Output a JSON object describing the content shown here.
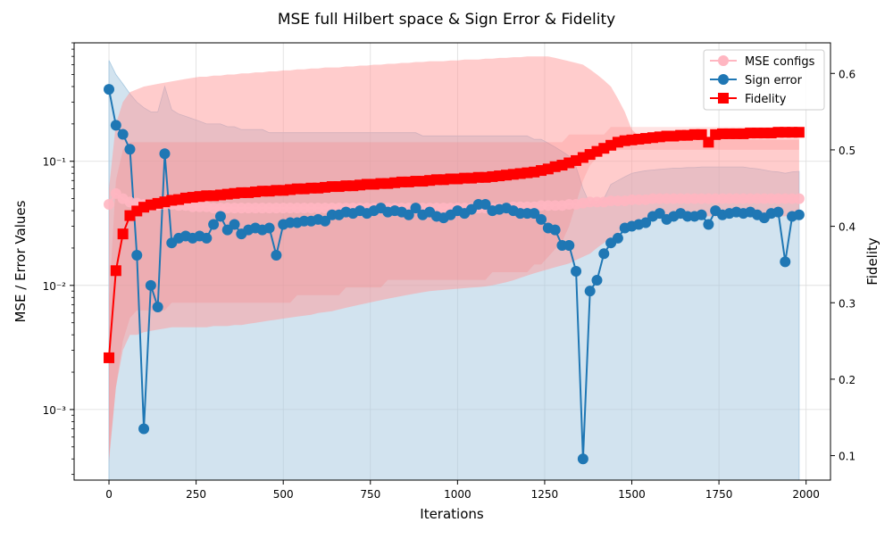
{
  "chart_data": {
    "type": "line",
    "title": "MSE full Hilbert space & Sign Error & Fidelity",
    "xlabel": "Iterations",
    "ylabel": "MSE / Error Values",
    "y2label": "Fidelity",
    "xlim": [
      -100,
      2070
    ],
    "ylim": [
      0.00027,
      0.9
    ],
    "yscale": "log",
    "y2lim": [
      0.068,
      0.64
    ],
    "grid": true,
    "legend_position": "top-right",
    "xticks": [
      "0",
      "250",
      "500",
      "750",
      "1000",
      "1250",
      "1500",
      "1750",
      "2000"
    ],
    "yticks": [
      "10⁻³",
      "10⁻²",
      "10⁻¹"
    ],
    "y2ticks": [
      "0.1",
      "0.2",
      "0.3",
      "0.4",
      "0.5",
      "0.6"
    ],
    "colors": {
      "mse": "#ffb6c1",
      "mse_band": "#ff9999",
      "sign": "#1f77b4",
      "sign_band": "#a6c8e0",
      "fidelity": "#ff0000"
    },
    "x": [
      0,
      20,
      40,
      60,
      80,
      100,
      120,
      140,
      160,
      180,
      200,
      220,
      240,
      260,
      280,
      300,
      320,
      340,
      360,
      380,
      400,
      420,
      440,
      460,
      480,
      500,
      520,
      540,
      560,
      580,
      600,
      620,
      640,
      660,
      680,
      700,
      720,
      740,
      760,
      780,
      800,
      820,
      840,
      860,
      880,
      900,
      920,
      940,
      960,
      980,
      1000,
      1020,
      1040,
      1060,
      1080,
      1100,
      1120,
      1140,
      1160,
      1180,
      1200,
      1220,
      1240,
      1260,
      1280,
      1300,
      1320,
      1340,
      1360,
      1380,
      1400,
      1420,
      1440,
      1460,
      1480,
      1500,
      1520,
      1540,
      1560,
      1580,
      1600,
      1620,
      1640,
      1660,
      1680,
      1700,
      1720,
      1740,
      1760,
      1780,
      1800,
      1820,
      1840,
      1860,
      1880,
      1900,
      1920,
      1940,
      1960,
      1980
    ],
    "series": [
      {
        "name": "MSE configs",
        "axis": "left",
        "values": [
          0.045,
          0.055,
          0.05,
          0.047,
          0.046,
          0.045,
          0.044,
          0.044,
          0.045,
          0.045,
          0.044,
          0.044,
          0.043,
          0.043,
          0.043,
          0.042,
          0.042,
          0.042,
          0.042,
          0.042,
          0.042,
          0.042,
          0.042,
          0.042,
          0.042,
          0.042,
          0.042,
          0.042,
          0.042,
          0.042,
          0.042,
          0.042,
          0.042,
          0.042,
          0.042,
          0.042,
          0.042,
          0.042,
          0.042,
          0.042,
          0.042,
          0.042,
          0.042,
          0.042,
          0.042,
          0.042,
          0.042,
          0.042,
          0.042,
          0.042,
          0.042,
          0.042,
          0.042,
          0.042,
          0.042,
          0.042,
          0.042,
          0.042,
          0.043,
          0.043,
          0.043,
          0.043,
          0.044,
          0.044,
          0.044,
          0.044,
          0.045,
          0.045,
          0.046,
          0.047,
          0.047,
          0.047,
          0.048,
          0.048,
          0.048,
          0.049,
          0.049,
          0.049,
          0.05,
          0.05,
          0.05,
          0.05,
          0.05,
          0.05,
          0.05,
          0.05,
          0.05,
          0.05,
          0.05,
          0.05,
          0.05,
          0.05,
          0.05,
          0.05,
          0.05,
          0.05,
          0.05,
          0.05,
          0.05,
          0.05
        ],
        "band_low": [
          0.0004,
          0.0015,
          0.003,
          0.004,
          0.004,
          0.0042,
          0.0043,
          0.0044,
          0.0045,
          0.0046,
          0.0046,
          0.0046,
          0.0046,
          0.0046,
          0.0046,
          0.0047,
          0.0047,
          0.0047,
          0.0048,
          0.0048,
          0.0049,
          0.005,
          0.0051,
          0.0052,
          0.0053,
          0.0054,
          0.0055,
          0.0056,
          0.0057,
          0.0058,
          0.006,
          0.0061,
          0.0062,
          0.0064,
          0.0066,
          0.0068,
          0.007,
          0.0072,
          0.0074,
          0.0076,
          0.0078,
          0.008,
          0.0082,
          0.0084,
          0.0086,
          0.0088,
          0.009,
          0.0091,
          0.0092,
          0.0093,
          0.0094,
          0.0095,
          0.0096,
          0.0097,
          0.0098,
          0.01,
          0.0103,
          0.0106,
          0.011,
          0.0115,
          0.012,
          0.0125,
          0.013,
          0.0135,
          0.014,
          0.0145,
          0.015,
          0.016,
          0.017,
          0.018,
          0.02,
          0.022,
          0.024,
          0.026,
          0.03,
          0.032,
          0.034,
          0.035,
          0.036,
          0.036,
          0.036,
          0.036,
          0.036,
          0.036,
          0.036,
          0.036,
          0.036,
          0.036,
          0.036,
          0.036,
          0.036,
          0.036,
          0.036,
          0.036,
          0.036,
          0.036,
          0.036,
          0.036,
          0.036,
          0.036
        ],
        "band_high": [
          0.06,
          0.2,
          0.3,
          0.36,
          0.38,
          0.4,
          0.41,
          0.42,
          0.43,
          0.44,
          0.45,
          0.46,
          0.47,
          0.48,
          0.48,
          0.49,
          0.49,
          0.5,
          0.5,
          0.51,
          0.51,
          0.52,
          0.52,
          0.53,
          0.53,
          0.54,
          0.54,
          0.55,
          0.55,
          0.56,
          0.56,
          0.57,
          0.57,
          0.57,
          0.58,
          0.58,
          0.59,
          0.59,
          0.6,
          0.6,
          0.61,
          0.61,
          0.62,
          0.62,
          0.63,
          0.63,
          0.64,
          0.64,
          0.64,
          0.65,
          0.65,
          0.66,
          0.66,
          0.66,
          0.67,
          0.67,
          0.68,
          0.68,
          0.69,
          0.69,
          0.7,
          0.7,
          0.7,
          0.7,
          0.68,
          0.66,
          0.64,
          0.62,
          0.6,
          0.55,
          0.5,
          0.45,
          0.4,
          0.32,
          0.25,
          0.18,
          0.16,
          0.15,
          0.15,
          0.15,
          0.15,
          0.15,
          0.15,
          0.15,
          0.15,
          0.15,
          0.15,
          0.15,
          0.15,
          0.15,
          0.15,
          0.15,
          0.15,
          0.15,
          0.15,
          0.15,
          0.15,
          0.15,
          0.15,
          0.15
        ]
      },
      {
        "name": "Sign error",
        "axis": "left",
        "values": [
          0.38,
          0.195,
          0.165,
          0.125,
          0.0175,
          0.0007,
          0.01,
          0.0067,
          0.115,
          0.022,
          0.024,
          0.025,
          0.024,
          0.025,
          0.024,
          0.031,
          0.036,
          0.028,
          0.031,
          0.026,
          0.028,
          0.029,
          0.028,
          0.029,
          0.0175,
          0.031,
          0.032,
          0.032,
          0.033,
          0.033,
          0.034,
          0.033,
          0.037,
          0.037,
          0.039,
          0.038,
          0.04,
          0.038,
          0.04,
          0.042,
          0.039,
          0.04,
          0.039,
          0.037,
          0.042,
          0.037,
          0.039,
          0.036,
          0.035,
          0.037,
          0.04,
          0.038,
          0.041,
          0.045,
          0.045,
          0.04,
          0.041,
          0.042,
          0.04,
          0.038,
          0.038,
          0.038,
          0.034,
          0.029,
          0.028,
          0.021,
          0.021,
          0.013,
          0.0004,
          0.009,
          0.011,
          0.018,
          0.022,
          0.024,
          0.029,
          0.03,
          0.031,
          0.032,
          0.036,
          0.038,
          0.034,
          0.036,
          0.038,
          0.036,
          0.036,
          0.037,
          0.031,
          0.04,
          0.037,
          0.038,
          0.039,
          0.038,
          0.039,
          0.037,
          0.035,
          0.038,
          0.039,
          0.0155,
          0.036,
          0.037
        ],
        "band_low": [
          0.0001,
          0.0001,
          0.0001,
          0.0001,
          0.0001,
          0.0001,
          0.0001,
          0.0001,
          0.0001,
          0.0001,
          0.0001,
          0.0001,
          0.0001,
          0.0001,
          0.0001,
          0.0001,
          0.0001,
          0.0001,
          0.0001,
          0.0001,
          0.0001,
          0.0001,
          0.0001,
          0.0001,
          0.0001,
          0.0001,
          0.0001,
          0.0001,
          0.0001,
          0.0001,
          0.0001,
          0.0001,
          0.0001,
          0.0001,
          0.0001,
          0.0001,
          0.0001,
          0.0001,
          0.0001,
          0.0001,
          0.0001,
          0.0001,
          0.0001,
          0.0001,
          0.0001,
          0.0001,
          0.0001,
          0.0001,
          0.0001,
          0.0001,
          0.0001,
          0.0001,
          0.0001,
          0.0001,
          0.0001,
          0.0001,
          0.0001,
          0.0001,
          0.0001,
          0.0001,
          0.0001,
          0.0001,
          0.0001,
          0.0001,
          0.0001,
          0.0001,
          0.0001,
          0.0001,
          0.0001,
          0.0001,
          0.0001,
          0.0001,
          0.0001,
          0.0001,
          0.0001,
          0.0001,
          0.0001,
          0.0001,
          0.0001,
          0.0001,
          0.0001,
          0.0001,
          0.0001,
          0.0001,
          0.0001,
          0.0001,
          0.0001,
          0.0001,
          0.0001,
          0.0001,
          0.0001,
          0.0001,
          0.0001,
          0.0001,
          0.0001,
          0.0001,
          0.0001,
          0.0001,
          0.0001,
          0.0001
        ],
        "band_high": [
          0.65,
          0.5,
          0.42,
          0.35,
          0.3,
          0.27,
          0.25,
          0.25,
          0.4,
          0.26,
          0.24,
          0.23,
          0.22,
          0.21,
          0.2,
          0.2,
          0.2,
          0.19,
          0.19,
          0.18,
          0.18,
          0.18,
          0.18,
          0.17,
          0.17,
          0.17,
          0.17,
          0.17,
          0.17,
          0.17,
          0.17,
          0.17,
          0.17,
          0.17,
          0.17,
          0.17,
          0.17,
          0.17,
          0.17,
          0.17,
          0.17,
          0.17,
          0.17,
          0.17,
          0.17,
          0.16,
          0.16,
          0.16,
          0.16,
          0.16,
          0.16,
          0.16,
          0.16,
          0.16,
          0.16,
          0.16,
          0.16,
          0.16,
          0.16,
          0.16,
          0.16,
          0.15,
          0.15,
          0.14,
          0.13,
          0.12,
          0.11,
          0.09,
          0.06,
          0.045,
          0.045,
          0.05,
          0.065,
          0.07,
          0.075,
          0.08,
          0.082,
          0.084,
          0.085,
          0.086,
          0.087,
          0.088,
          0.088,
          0.089,
          0.089,
          0.09,
          0.09,
          0.09,
          0.09,
          0.09,
          0.09,
          0.09,
          0.088,
          0.087,
          0.085,
          0.083,
          0.082,
          0.08,
          0.082,
          0.083
        ]
      },
      {
        "name": "Fidelity",
        "axis": "right",
        "values": [
          0.228,
          0.342,
          0.39,
          0.414,
          0.42,
          0.425,
          0.428,
          0.43,
          0.432,
          0.434,
          0.435,
          0.437,
          0.438,
          0.439,
          0.44,
          0.44,
          0.441,
          0.442,
          0.443,
          0.444,
          0.444,
          0.445,
          0.446,
          0.446,
          0.447,
          0.447,
          0.448,
          0.449,
          0.449,
          0.45,
          0.45,
          0.451,
          0.452,
          0.452,
          0.453,
          0.453,
          0.454,
          0.455,
          0.455,
          0.456,
          0.456,
          0.457,
          0.458,
          0.458,
          0.459,
          0.459,
          0.46,
          0.461,
          0.461,
          0.462,
          0.462,
          0.463,
          0.463,
          0.464,
          0.464,
          0.465,
          0.466,
          0.467,
          0.468,
          0.469,
          0.47,
          0.471,
          0.473,
          0.475,
          0.478,
          0.48,
          0.483,
          0.486,
          0.49,
          0.494,
          0.498,
          0.502,
          0.506,
          0.51,
          0.512,
          0.513,
          0.514,
          0.515,
          0.516,
          0.517,
          0.518,
          0.518,
          0.519,
          0.519,
          0.52,
          0.52,
          0.51,
          0.52,
          0.521,
          0.521,
          0.521,
          0.521,
          0.522,
          0.522,
          0.522,
          0.522,
          0.523,
          0.523,
          0.523,
          0.523
        ],
        "band_low": [
          0.09,
          0.19,
          0.25,
          0.28,
          0.29,
          0.29,
          0.29,
          0.29,
          0.29,
          0.3,
          0.3,
          0.3,
          0.3,
          0.3,
          0.3,
          0.3,
          0.3,
          0.3,
          0.3,
          0.3,
          0.3,
          0.3,
          0.3,
          0.3,
          0.3,
          0.3,
          0.3,
          0.31,
          0.31,
          0.31,
          0.31,
          0.31,
          0.31,
          0.31,
          0.32,
          0.32,
          0.32,
          0.32,
          0.32,
          0.32,
          0.33,
          0.33,
          0.33,
          0.33,
          0.33,
          0.33,
          0.33,
          0.33,
          0.33,
          0.33,
          0.33,
          0.33,
          0.33,
          0.33,
          0.33,
          0.34,
          0.34,
          0.34,
          0.34,
          0.34,
          0.34,
          0.35,
          0.35,
          0.36,
          0.37,
          0.38,
          0.4,
          0.43,
          0.46,
          0.48,
          0.49,
          0.5,
          0.5,
          0.5,
          0.5,
          0.5,
          0.5,
          0.5,
          0.5,
          0.5,
          0.5,
          0.5,
          0.5,
          0.5,
          0.5,
          0.5,
          0.5,
          0.5,
          0.5,
          0.5,
          0.5,
          0.5,
          0.5,
          0.5,
          0.5,
          0.5,
          0.5,
          0.5,
          0.5,
          0.5
        ],
        "band_high": [
          0.3,
          0.46,
          0.5,
          0.51,
          0.51,
          0.51,
          0.51,
          0.51,
          0.51,
          0.51,
          0.51,
          0.51,
          0.51,
          0.51,
          0.51,
          0.51,
          0.51,
          0.51,
          0.51,
          0.51,
          0.51,
          0.51,
          0.51,
          0.51,
          0.51,
          0.51,
          0.51,
          0.51,
          0.51,
          0.51,
          0.51,
          0.51,
          0.51,
          0.51,
          0.51,
          0.51,
          0.51,
          0.51,
          0.51,
          0.51,
          0.51,
          0.51,
          0.51,
          0.51,
          0.51,
          0.51,
          0.51,
          0.51,
          0.51,
          0.51,
          0.51,
          0.51,
          0.51,
          0.51,
          0.51,
          0.51,
          0.51,
          0.51,
          0.51,
          0.51,
          0.51,
          0.51,
          0.51,
          0.51,
          0.51,
          0.51,
          0.52,
          0.52,
          0.52,
          0.52,
          0.52,
          0.52,
          0.53,
          0.53,
          0.53,
          0.53,
          0.53,
          0.53,
          0.53,
          0.53,
          0.53,
          0.53,
          0.53,
          0.53,
          0.53,
          0.53,
          0.53,
          0.53,
          0.53,
          0.53,
          0.53,
          0.53,
          0.53,
          0.53,
          0.53,
          0.53,
          0.53,
          0.53,
          0.53,
          0.53
        ]
      }
    ]
  }
}
